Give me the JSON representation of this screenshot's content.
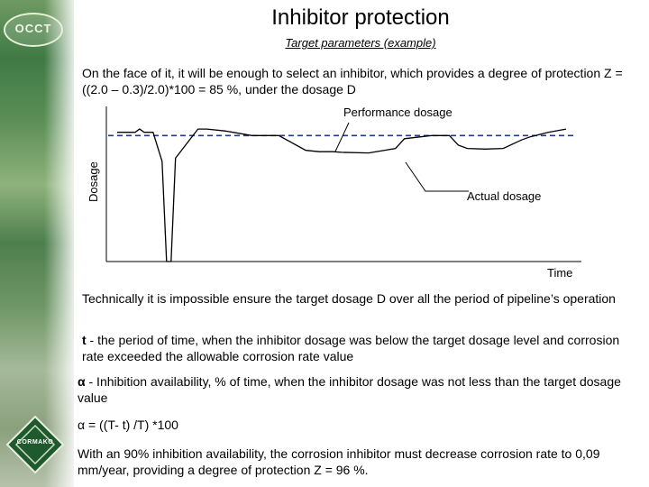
{
  "slide": {
    "title": "Inhibitor protection",
    "subtitle": "Target parameters (example)",
    "intro": "On the face of it, it will be enough to select an inhibitor, which provides a degree of protection Z = ((2.0 – 0.3)/2.0)*100 = 85 %, under the dosage D",
    "p1": "Technically it is impossible ensure the target dosage D over all the period of pipeline’s operation",
    "p2_symbol": "t",
    "p2_rest": " - the period of time, when the inhibitor dosage was below the target dosage level and corrosion rate exceeded  the allowable corrosion rate value",
    "p3_symbol": "α",
    "p3_rest": " - Inhibition availability, % of time, when the inhibitor dosage was not less than the target dosage value",
    "p4": "α = ((T- t) /T) *100",
    "p5": "With an 90% inhibition availability, the corrosion inhibitor must decrease corrosion rate to 0,09 mm/year, providing a degree of protection Z = 96 %."
  },
  "logos": {
    "top_text": "OCCT",
    "bottom_text": "CORMAKO"
  },
  "chart_data": {
    "type": "line",
    "ylabel": "Dosage",
    "xlabel": "Time",
    "annotations": [
      "Performance dosage",
      "Actual dosage"
    ],
    "series": [
      {
        "name": "Actual dosage",
        "x": [
          0,
          4,
          5,
          6,
          8,
          10,
          11,
          12,
          13,
          18,
          20,
          24,
          30,
          36,
          42,
          45,
          48,
          50,
          56,
          62,
          64,
          70,
          74,
          76,
          78,
          82,
          86,
          90,
          92,
          96,
          100
        ],
        "values": [
          1.0,
          1.0,
          1.05,
          1.0,
          1.0,
          0.55,
          -1.0,
          -1.0,
          0.6,
          1.05,
          1.05,
          1.02,
          0.95,
          0.95,
          0.72,
          0.7,
          0.7,
          0.69,
          0.68,
          0.75,
          0.9,
          0.95,
          0.95,
          0.8,
          0.75,
          0.74,
          0.75,
          0.88,
          0.93,
          1.0,
          1.05
        ]
      },
      {
        "name": "Performance dosage",
        "x": [
          0,
          100
        ],
        "values": [
          0.95,
          0.95
        ]
      }
    ],
    "xlim": [
      0,
      100
    ],
    "ylim": [
      -1,
      1.4
    ]
  },
  "colors": {
    "dashed_line": "#1f3c8c",
    "actual_line": "#000000"
  }
}
